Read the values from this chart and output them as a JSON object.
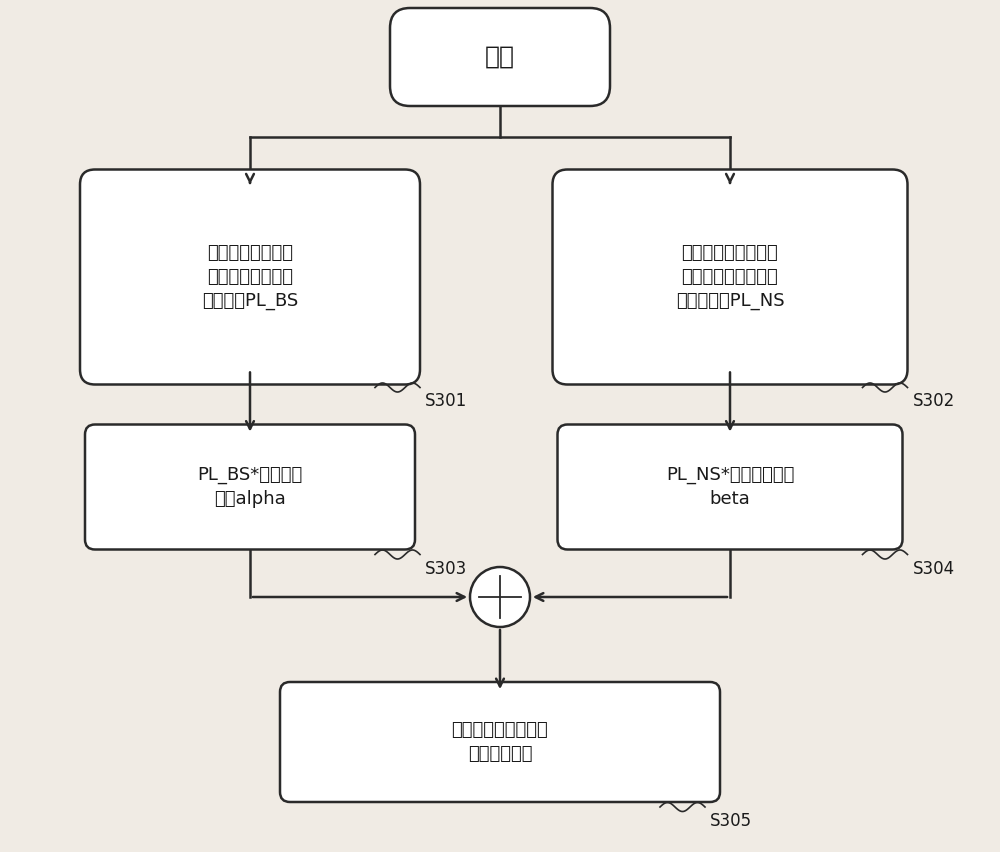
{
  "bg_color": "#f0ebe4",
  "fig_width": 10.0,
  "fig_height": 8.52,
  "start_label": "开始",
  "box1_text": "根据下行导频信道\n测量用户到本小区\n基站路损PL_BS",
  "box2_text": "根据下行导频信道测\n量用户到最近相邻小\n区基站路损PL_NS",
  "box3_text": "PL_BS*路损补偿\n因子alpha",
  "box4_text": "PL_NS*干扰控制因子\nbeta",
  "box5_text": "结合其他参数，确定\n开环发射功率",
  "label_s301": "S301",
  "label_s302": "S302",
  "label_s303": "S303",
  "label_s304": "S304",
  "label_s305": "S305",
  "box_edge_color": "#2a2a2a",
  "box_fill_color": "#ffffff",
  "arrow_color": "#2a2a2a",
  "text_color": "#1a1a1a",
  "font_size_box": 13,
  "font_size_label": 12,
  "font_size_start": 18
}
